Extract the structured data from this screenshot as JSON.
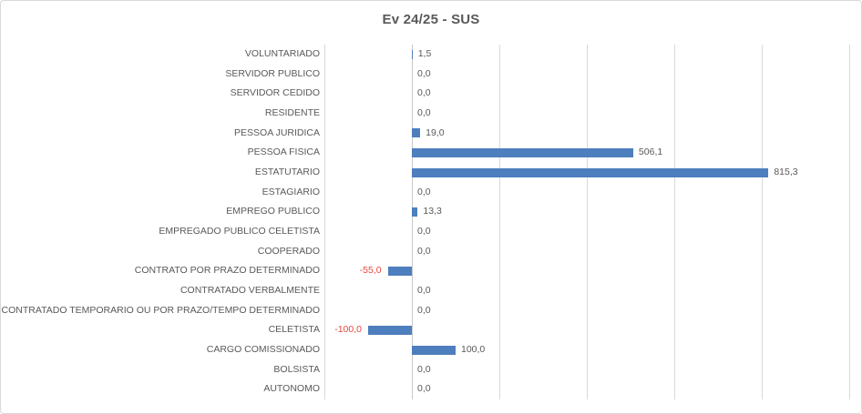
{
  "chart_data": {
    "type": "bar",
    "orientation": "horizontal",
    "title": "Ev 24/25 - SUS",
    "categories": [
      "VOLUNTARIADO",
      "SERVIDOR PUBLICO",
      "SERVIDOR CEDIDO",
      "RESIDENTE",
      "PESSOA JURIDICA",
      "PESSOA FISICA",
      "ESTATUTARIO",
      "ESTAGIARIO",
      "EMPREGO PUBLICO",
      "EMPREGADO PUBLICO CELETISTA",
      "COOPERADO",
      "CONTRATO POR PRAZO DETERMINADO",
      "CONTRATADO VERBALMENTE",
      "CONTRATADO TEMPORARIO OU POR PRAZO/TEMPO DETERMINADO",
      "CELETISTA",
      "CARGO COMISSIONADO",
      "BOLSISTA",
      "AUTONOMO"
    ],
    "values": [
      1.5,
      0,
      0,
      0,
      19.0,
      506.1,
      815.3,
      0,
      13.3,
      0,
      0,
      -55.0,
      0,
      0,
      -100.0,
      100.0,
      0,
      0
    ],
    "value_labels": [
      "1,5",
      "0,0",
      "0,0",
      "0,0",
      "19,0",
      "506,1",
      "815,3",
      "0,0",
      "13,3",
      "0,0",
      "0,0",
      "-55,0",
      "0,0",
      "0,0",
      "-100,0",
      "100,0",
      "0,0",
      "0,0"
    ],
    "xlim": [
      -200,
      1000
    ],
    "gridline_step": 200,
    "grid": true,
    "legend": "none",
    "value_axis_tick_labels_visible": false,
    "colors": {
      "bar": "#4D7EBD",
      "title": "#595959",
      "category_label": "#595959",
      "positive_label": "#595959",
      "negative_label": "#E8463E",
      "gridline": "#D9D9D9",
      "axis_line": "#C8C8C8",
      "border": "#D9D9D9",
      "background": "#FFFFFF"
    }
  }
}
